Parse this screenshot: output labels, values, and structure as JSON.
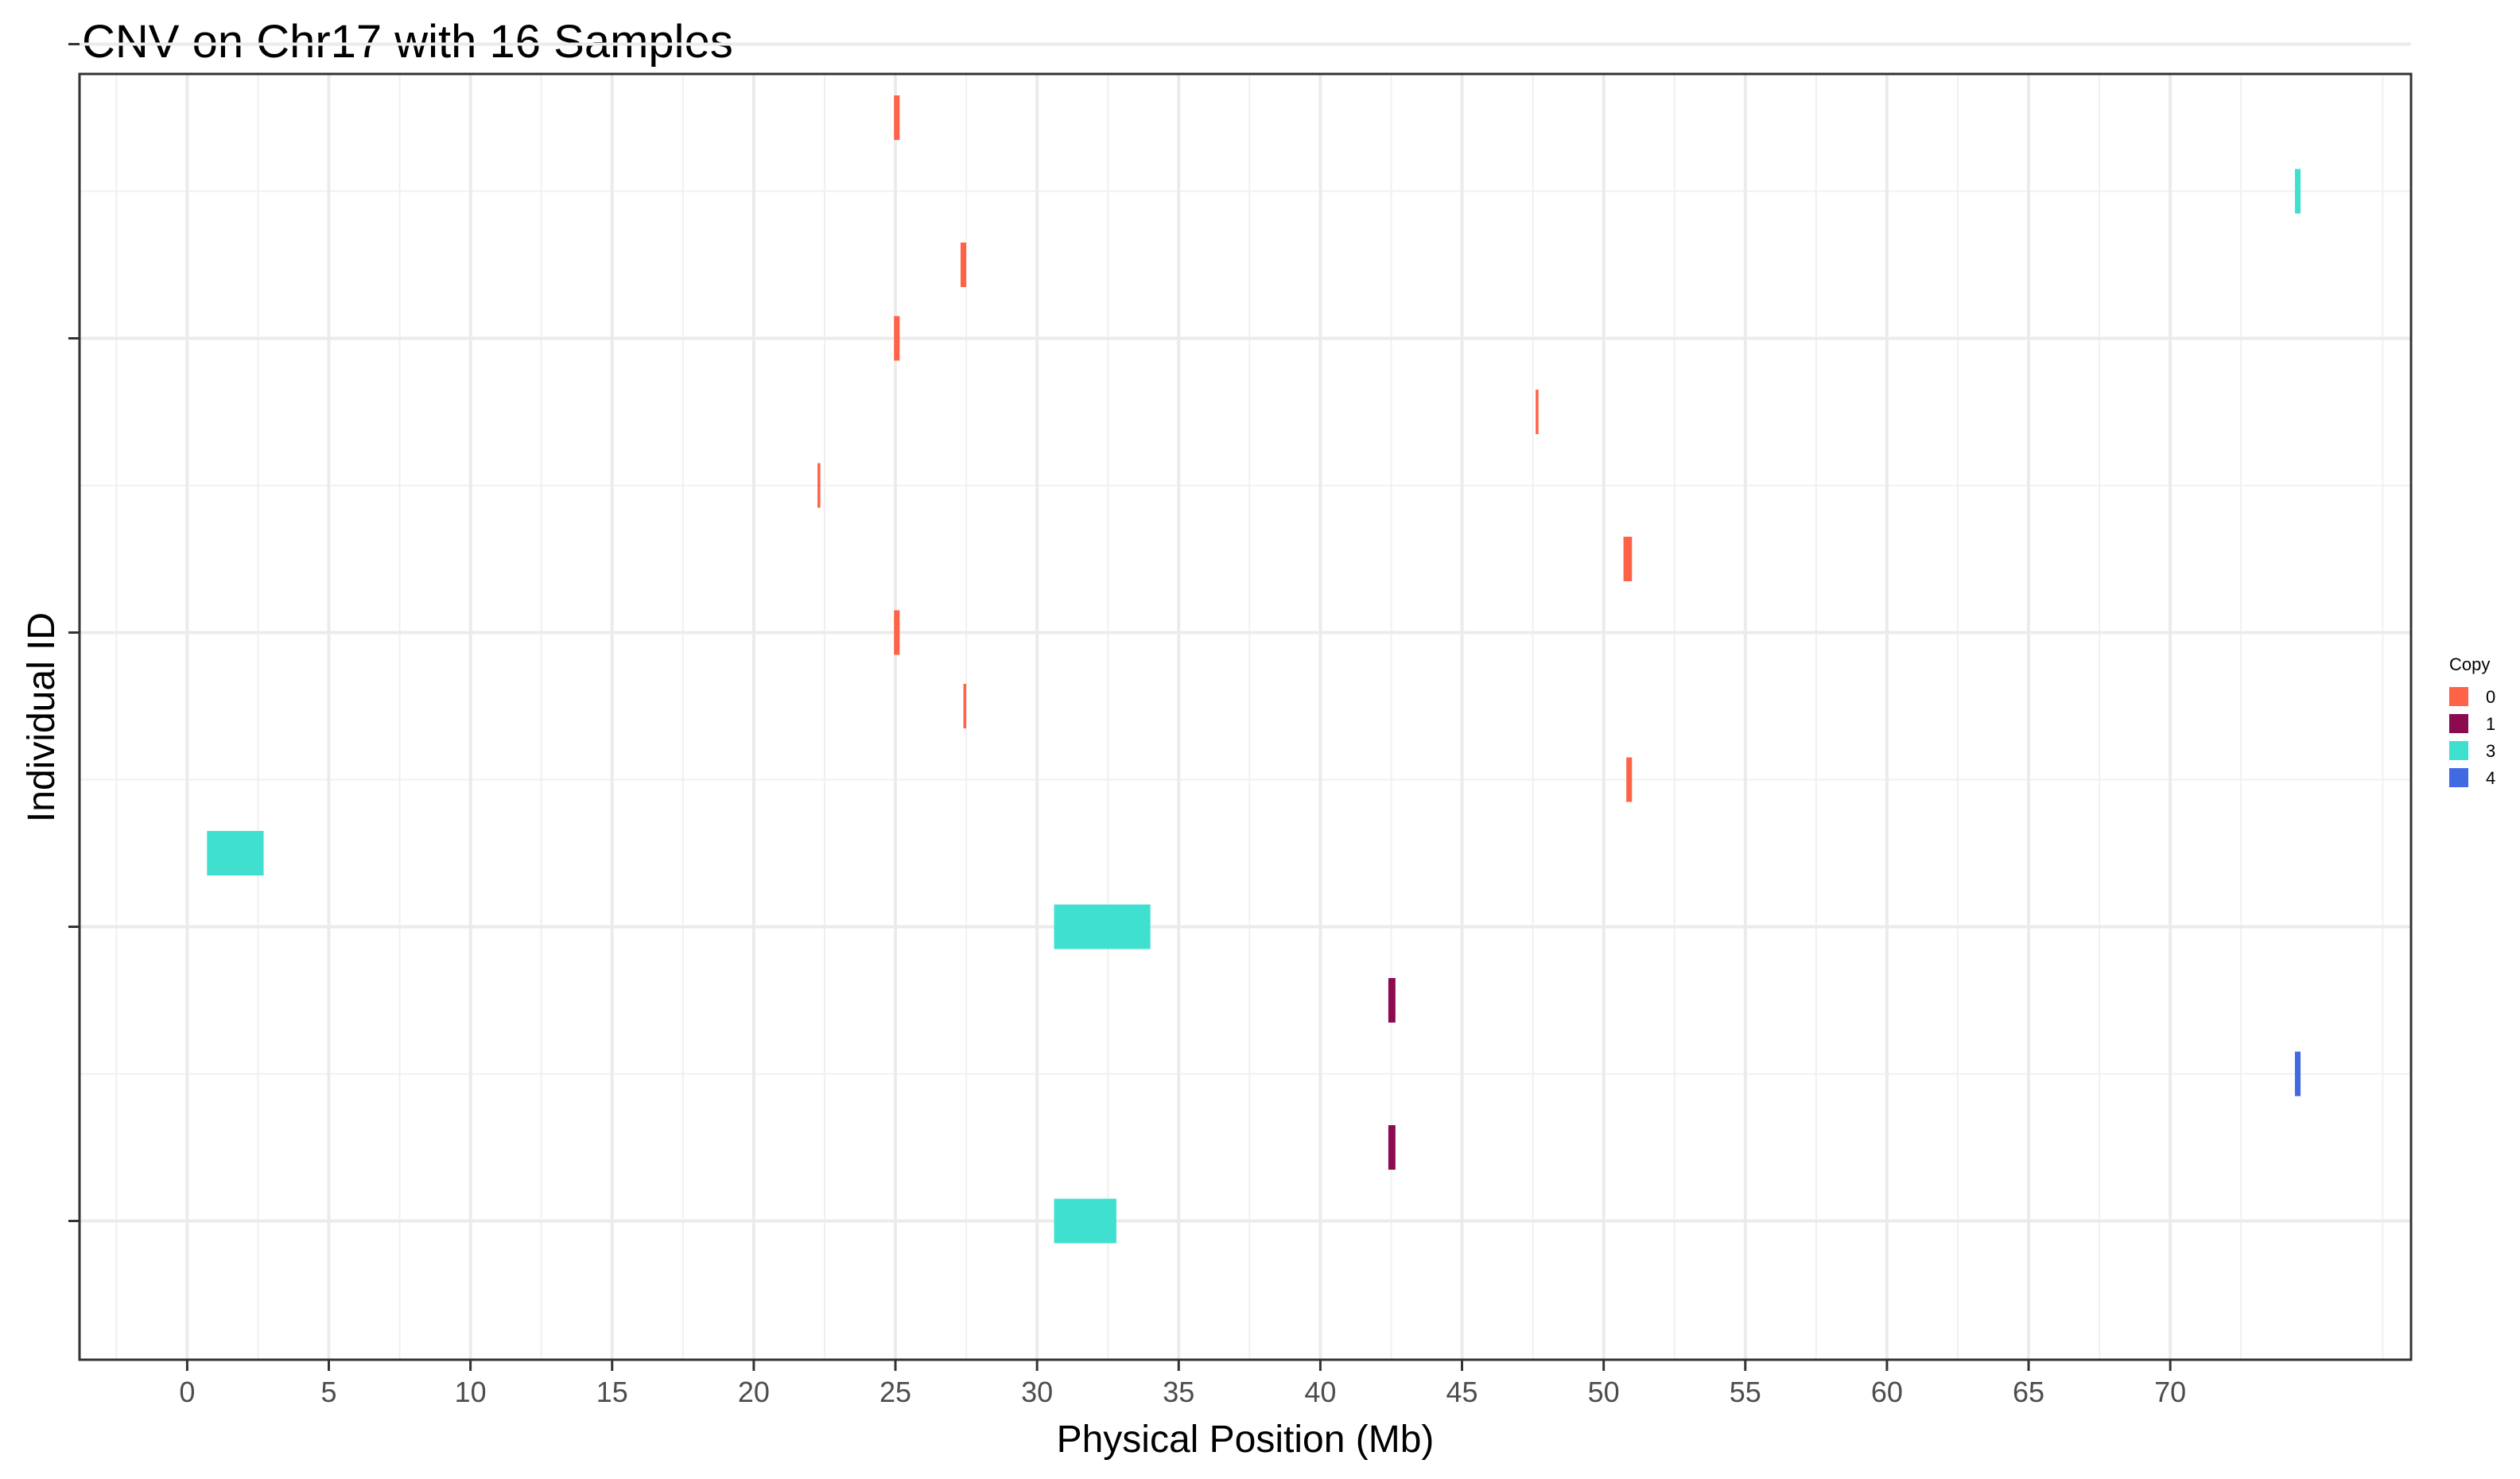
{
  "chart_data": {
    "type": "segment",
    "title": "CNV on Chr17 with 16 Samples",
    "xlabel": "Physical Position (Mb)",
    "ylabel": "Individual ID",
    "xlim": [
      -3.8,
      78.5
    ],
    "x_ticks": [
      0,
      5,
      10,
      15,
      20,
      25,
      30,
      35,
      40,
      45,
      50,
      55,
      60,
      65,
      70
    ],
    "x_tick_labels": [
      "0",
      "5",
      "10",
      "15",
      "20",
      "25",
      "30",
      "35",
      "40",
      "45",
      "50",
      "55",
      "60",
      "65",
      "70"
    ],
    "y_rows": 16,
    "y_tick_rows": [
      0,
      4,
      8,
      12,
      16
    ],
    "grid": true,
    "legend": {
      "title": "Copy",
      "position": "right",
      "entries": [
        {
          "label": "0",
          "color": "#FF6347"
        },
        {
          "label": "1",
          "color": "#8B0A50"
        },
        {
          "label": "3",
          "color": "#40E0D0"
        },
        {
          "label": "4",
          "color": "#4169E1"
        }
      ]
    },
    "segments": [
      {
        "row": 15.0,
        "start": 24.95,
        "end": 25.15,
        "copy": "0"
      },
      {
        "row": 14.0,
        "start": 74.4,
        "end": 74.6,
        "copy": "3"
      },
      {
        "row": 13.0,
        "start": 27.3,
        "end": 27.5,
        "copy": "0"
      },
      {
        "row": 12.0,
        "start": 24.95,
        "end": 25.15,
        "copy": "0"
      },
      {
        "row": 11.0,
        "start": 47.6,
        "end": 47.7,
        "copy": "0"
      },
      {
        "row": 10.0,
        "start": 22.25,
        "end": 22.35,
        "copy": "0"
      },
      {
        "row": 9.0,
        "start": 50.7,
        "end": 51.0,
        "copy": "0"
      },
      {
        "row": 8.0,
        "start": 24.95,
        "end": 25.15,
        "copy": "0"
      },
      {
        "row": 7.0,
        "start": 27.4,
        "end": 27.5,
        "copy": "0"
      },
      {
        "row": 6.0,
        "start": 50.8,
        "end": 51.0,
        "copy": "0"
      },
      {
        "row": 5.0,
        "start": 0.7,
        "end": 2.7,
        "copy": "3"
      },
      {
        "row": 4.0,
        "start": 30.6,
        "end": 34.0,
        "copy": "3"
      },
      {
        "row": 3.0,
        "start": 42.4,
        "end": 42.65,
        "copy": "1"
      },
      {
        "row": 2.0,
        "start": 74.4,
        "end": 74.6,
        "copy": "4"
      },
      {
        "row": 1.0,
        "start": 42.4,
        "end": 42.65,
        "copy": "1"
      },
      {
        "row": 0.0,
        "start": 30.6,
        "end": 32.8,
        "copy": "3"
      }
    ]
  }
}
